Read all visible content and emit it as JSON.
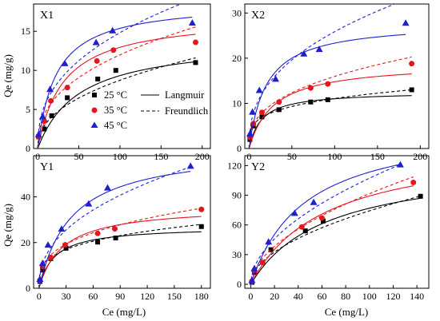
{
  "figure": {
    "xlabel": "Ce (mg/L)",
    "ylabel": "Qe (mg/g)",
    "legend": {
      "series": [
        {
          "label": "25 °C",
          "color": "#000000",
          "marker": "square"
        },
        {
          "label": "35 °C",
          "color": "#e8141b",
          "marker": "circle"
        },
        {
          "label": "45 °C",
          "color": "#1f1fd2",
          "marker": "triangle"
        }
      ],
      "models": [
        {
          "label": "Langmuir",
          "style": "solid"
        },
        {
          "label": "Freundlich",
          "style": "dashed"
        }
      ]
    }
  },
  "chart_data": [
    {
      "type": "scatter",
      "title": "X1",
      "xlabel": "",
      "ylabel": "Qe (mg/g)",
      "xlim": [
        -5,
        210
      ],
      "ylim": [
        0,
        18.5
      ],
      "xticks": [
        0,
        50,
        100,
        150,
        200
      ],
      "yticks": [
        0,
        5,
        10,
        15
      ],
      "series": [
        {
          "name": "25 °C",
          "color": "#000000",
          "marker": "square",
          "x": [
            1,
            8,
            17,
            36,
            73,
            95,
            192
          ],
          "y": [
            1.5,
            2.5,
            4.2,
            6.5,
            8.9,
            10.0,
            11.0
          ],
          "langmuir": {
            "qm": 14.0,
            "kl": 0.02
          },
          "freundlich": {
            "kf": 1.18,
            "n": 2.3
          }
        },
        {
          "name": "35 °C",
          "color": "#e8141b",
          "marker": "circle",
          "x": [
            1,
            8,
            16,
            36,
            72,
            92,
            192
          ],
          "y": [
            1.5,
            3.5,
            6.1,
            7.8,
            11.2,
            12.6,
            13.6
          ],
          "langmuir": {
            "qm": 17.0,
            "kl": 0.032
          },
          "freundlich": {
            "kf": 1.9,
            "n": 2.5
          }
        },
        {
          "name": "45 °C",
          "color": "#1f1fd2",
          "marker": "triangle",
          "x": [
            1,
            6,
            15,
            33,
            71,
            91,
            188
          ],
          "y": [
            1.8,
            4.1,
            7.6,
            10.9,
            13.6,
            15.1,
            16.1
          ],
          "langmuir": {
            "qm": 18.8,
            "kl": 0.045
          },
          "freundlich": {
            "kf": 2.35,
            "n": 2.5
          }
        }
      ]
    },
    {
      "type": "scatter",
      "title": "X2",
      "xlabel": "",
      "ylabel": "",
      "xlim": [
        -5,
        210
      ],
      "ylim": [
        0,
        32
      ],
      "xticks": [
        0,
        50,
        100,
        150,
        200
      ],
      "yticks": [
        0,
        10,
        20,
        30
      ],
      "series": [
        {
          "name": "25 °C",
          "color": "#000000",
          "marker": "square",
          "x": [
            1,
            5,
            15,
            35,
            72,
            92,
            190
          ],
          "y": [
            2.0,
            5.0,
            7.0,
            8.6,
            10.3,
            10.8,
            13.0
          ],
          "langmuir": {
            "qm": 12.6,
            "kl": 0.07
          },
          "freundlich": {
            "kf": 3.5,
            "n": 4.0
          }
        },
        {
          "name": "35 °C",
          "color": "#e8141b",
          "marker": "circle",
          "x": [
            1,
            5,
            15,
            35,
            72,
            92,
            190
          ],
          "y": [
            2.5,
            5.5,
            8.0,
            10.3,
            13.4,
            14.3,
            18.8
          ],
          "langmuir": {
            "qm": 19.0,
            "kl": 0.035
          },
          "freundlich": {
            "kf": 2.9,
            "n": 2.7
          }
        },
        {
          "name": "45 °C",
          "color": "#1f1fd2",
          "marker": "triangle",
          "x": [
            1,
            4,
            12,
            31,
            64,
            82,
            183
          ],
          "y": [
            3.3,
            8.1,
            12.9,
            15.4,
            21.0,
            22.0,
            27.8
          ],
          "langmuir": {
            "qm": 28.0,
            "kl": 0.05
          },
          "freundlich": {
            "kf": 4.1,
            "n": 2.5
          }
        }
      ]
    },
    {
      "type": "scatter",
      "title": "Y1",
      "xlabel": "Ce (mg/L)",
      "ylabel": "Qe (mg/g)",
      "xlim": [
        -6,
        190
      ],
      "ylim": [
        0,
        58
      ],
      "xticks": [
        0,
        30,
        60,
        90,
        120,
        150,
        180
      ],
      "yticks": [
        0,
        20,
        40
      ],
      "series": [
        {
          "name": "25 °C",
          "color": "#000000",
          "marker": "square",
          "x": [
            1,
            4,
            13,
            30,
            65,
            85,
            180
          ],
          "y": [
            3.0,
            8.0,
            13.0,
            17.5,
            20.2,
            22.0,
            27.0
          ],
          "langmuir": {
            "qm": 27.0,
            "kl": 0.06
          },
          "freundlich": {
            "kf": 6.6,
            "n": 3.6
          }
        },
        {
          "name": "35 °C",
          "color": "#e8141b",
          "marker": "circle",
          "x": [
            1,
            4,
            13,
            29,
            65,
            84,
            180
          ],
          "y": [
            3.5,
            9.5,
            13.5,
            19.0,
            24.0,
            26.0,
            34.5
          ],
          "langmuir": {
            "qm": 36.0,
            "kl": 0.038
          },
          "freundlich": {
            "kf": 6.2,
            "n": 3.0
          }
        },
        {
          "name": "45 °C",
          "color": "#1f1fd2",
          "marker": "triangle",
          "x": [
            1,
            4,
            10,
            25,
            55,
            76,
            168
          ],
          "y": [
            4.0,
            11.0,
            19.0,
            26.0,
            37.0,
            44.0,
            53.5
          ],
          "langmuir": {
            "qm": 62.0,
            "kl": 0.028
          },
          "freundlich": {
            "kf": 6.0,
            "n": 2.35
          }
        }
      ]
    },
    {
      "type": "scatter",
      "title": "Y2",
      "xlabel": "Ce (mg/L)",
      "ylabel": "",
      "xlim": [
        -5,
        150
      ],
      "ylim": [
        -4,
        130
      ],
      "xticks": [
        0,
        20,
        40,
        60,
        80,
        100,
        120,
        140
      ],
      "yticks": [
        0,
        30,
        60,
        90,
        120
      ],
      "series": [
        {
          "name": "25 °C",
          "color": "#000000",
          "marker": "square",
          "x": [
            1,
            3,
            17,
            46,
            61,
            143
          ],
          "y": [
            2.0,
            12.0,
            35.0,
            54.0,
            64.0,
            89.0
          ],
          "langmuir": {
            "qm": 125.0,
            "kl": 0.016
          },
          "freundlich": {
            "kf": 7.0,
            "n": 1.95
          }
        },
        {
          "name": "35 °C",
          "color": "#e8141b",
          "marker": "circle",
          "x": [
            1,
            3,
            10,
            43,
            60,
            137
          ],
          "y": [
            3.0,
            14.0,
            22.0,
            58.0,
            67.0,
            103.0
          ],
          "langmuir": {
            "qm": 145.0,
            "kl": 0.016
          },
          "freundlich": {
            "kf": 7.6,
            "n": 1.85
          }
        },
        {
          "name": "45 °C",
          "color": "#1f1fd2",
          "marker": "triangle",
          "x": [
            1,
            3,
            15,
            37,
            53,
            126
          ],
          "y": [
            4.0,
            16.0,
            43.0,
            72.0,
            83.0,
            121.0
          ],
          "langmuir": {
            "qm": 165.0,
            "kl": 0.022
          },
          "freundlich": {
            "kf": 9.5,
            "n": 1.9
          }
        }
      ]
    }
  ]
}
